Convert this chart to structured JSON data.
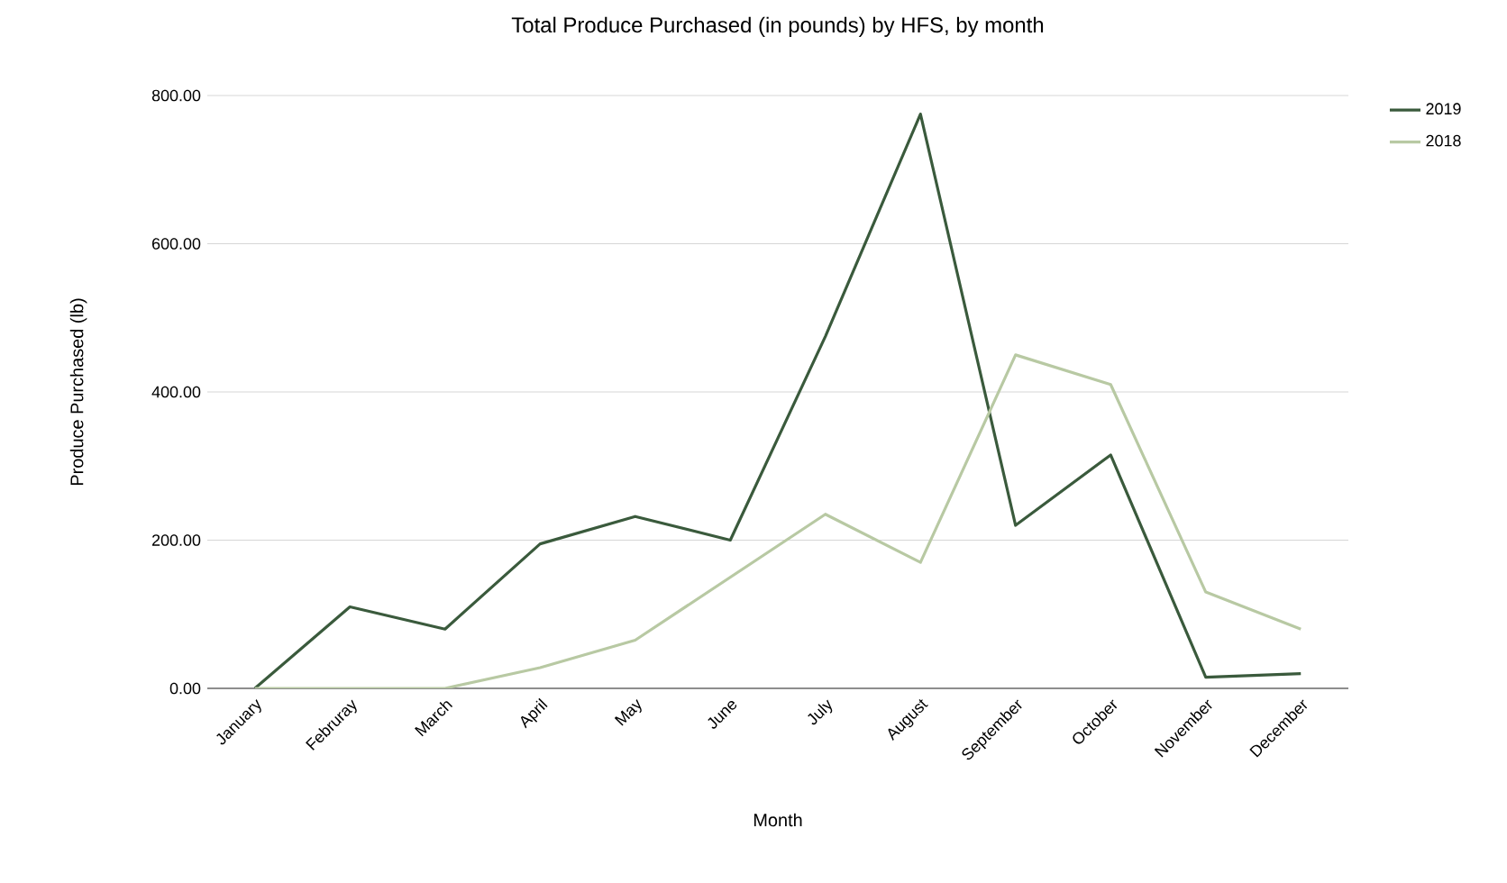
{
  "chart_data": {
    "type": "line",
    "title": "Total Produce Purchased (in pounds) by HFS, by month",
    "xlabel": "Month",
    "ylabel": "Produce Purchased (lb)",
    "categories": [
      "January",
      "Februray",
      "March",
      "April",
      "May",
      "June",
      "July",
      "August",
      "September",
      "October",
      "November",
      "December"
    ],
    "series": [
      {
        "name": "2019",
        "color": "#3a5a3c",
        "values": [
          0,
          110,
          80,
          195,
          232,
          200,
          475,
          775,
          220,
          315,
          15,
          20
        ]
      },
      {
        "name": "2018",
        "color": "#b8c9a3",
        "values": [
          0,
          0,
          0,
          28,
          65,
          150,
          235,
          170,
          450,
          410,
          130,
          80
        ]
      }
    ],
    "ylim": [
      0,
      800
    ],
    "yticks": [
      {
        "value": 0,
        "label": "0.00"
      },
      {
        "value": 200,
        "label": "200.00"
      },
      {
        "value": 400,
        "label": "400.00"
      },
      {
        "value": 600,
        "label": "600.00"
      },
      {
        "value": 800,
        "label": "800.00"
      }
    ],
    "grid": "y",
    "legend": "top right",
    "marker": "none",
    "line_style": "solid"
  }
}
